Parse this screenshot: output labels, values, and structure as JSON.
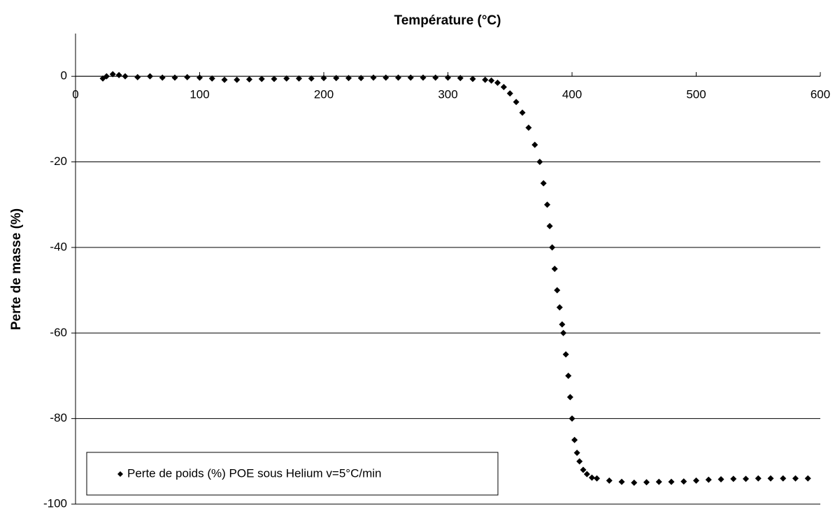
{
  "chart_data": {
    "type": "scatter",
    "xlabel": "Température (°C)",
    "ylabel": "Perte de masse (%)",
    "x": [
      22,
      25,
      30,
      35,
      40,
      50,
      60,
      70,
      80,
      90,
      100,
      110,
      120,
      130,
      140,
      150,
      160,
      170,
      180,
      190,
      200,
      210,
      220,
      230,
      240,
      250,
      260,
      270,
      280,
      290,
      300,
      310,
      320,
      330,
      335,
      340,
      345,
      350,
      355,
      360,
      365,
      370,
      374,
      377,
      380,
      382,
      384,
      386,
      388,
      390,
      392,
      393,
      395,
      397,
      398.5,
      400,
      402,
      404,
      406,
      409,
      412,
      416,
      420,
      430,
      440,
      450,
      460,
      470,
      480,
      490,
      500,
      510,
      520,
      530,
      540,
      550,
      560,
      570,
      580,
      590
    ],
    "series": [
      {
        "name": "Perte de poids (%) POE sous Helium v=5°C/min",
        "color": "#000000",
        "values": [
          -0.5,
          0,
          0.5,
          0.3,
          0,
          -0.2,
          0,
          -0.3,
          -0.3,
          -0.2,
          -0.3,
          -0.5,
          -0.8,
          -0.8,
          -0.7,
          -0.6,
          -0.6,
          -0.5,
          -0.5,
          -0.5,
          -0.4,
          -0.4,
          -0.4,
          -0.4,
          -0.3,
          -0.3,
          -0.3,
          -0.3,
          -0.3,
          -0.3,
          -0.3,
          -0.4,
          -0.6,
          -0.8,
          -1,
          -1.5,
          -2.5,
          -4,
          -6,
          -8.5,
          -12,
          -16,
          -20,
          -25,
          -30,
          -35,
          -40,
          -45,
          -50,
          -54,
          -58,
          -60,
          -65,
          -70,
          -75,
          -80,
          -85,
          -88,
          -90,
          -92,
          -93,
          -93.8,
          -94,
          -94.5,
          -94.8,
          -95,
          -94.9,
          -94.8,
          -94.8,
          -94.7,
          -94.5,
          -94.3,
          -94.2,
          -94.1,
          -94.1,
          -94,
          -94,
          -94,
          -94,
          -94
        ]
      }
    ],
    "xlim": [
      0,
      600
    ],
    "xticks": [
      0,
      100,
      200,
      300,
      400,
      500,
      600
    ],
    "ylim": [
      -100,
      10
    ],
    "yticks": [
      -100,
      -80,
      -60,
      -40,
      -20,
      0
    ],
    "grid": true,
    "legend": "lower left"
  }
}
